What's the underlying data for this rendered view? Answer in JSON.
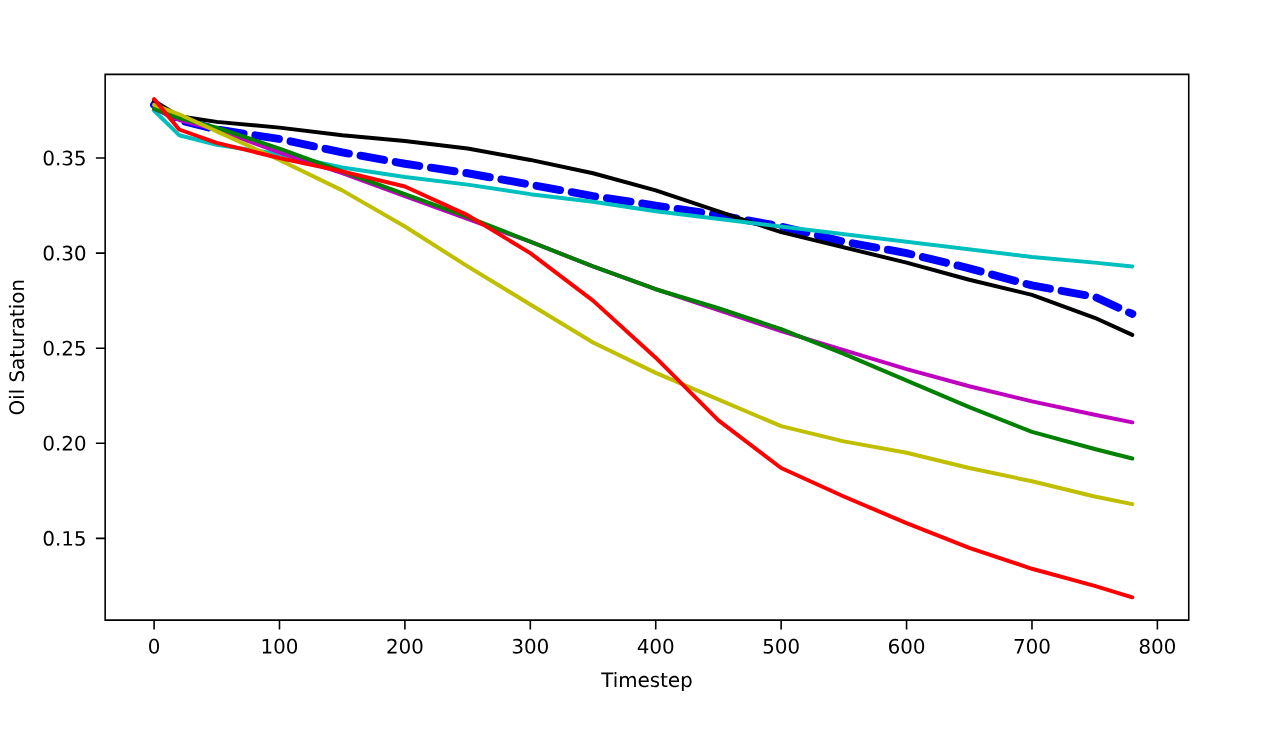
{
  "chart_data": {
    "type": "line",
    "xlabel": "Timestep",
    "ylabel": "Oil Saturation",
    "xlim": [
      -39,
      825
    ],
    "ylim": [
      0.107,
      0.394
    ],
    "xticks": [
      0,
      100,
      200,
      300,
      400,
      500,
      600,
      700,
      800
    ],
    "yticks": [
      0.15,
      {
        "value": 0.2,
        "label": "0.20"
      },
      0.25,
      {
        "value": 0.3,
        "label": "0.30"
      },
      0.35
    ],
    "marker": "none",
    "line_style": "solid",
    "x": [
      0,
      20,
      50,
      100,
      150,
      200,
      250,
      300,
      350,
      400,
      450,
      500,
      550,
      600,
      650,
      700,
      750,
      780
    ],
    "series": [
      {
        "color": "#0000ff",
        "line_style": "dashed",
        "values": [
          0.378,
          0.37,
          0.365,
          0.36,
          0.353,
          0.347,
          0.342,
          0.336,
          0.33,
          0.325,
          0.32,
          0.314,
          0.306,
          0.3,
          0.292,
          0.283,
          0.277,
          0.268
        ]
      },
      {
        "color": "#000000",
        "values": [
          0.38,
          0.372,
          0.369,
          0.366,
          0.362,
          0.359,
          0.355,
          0.349,
          0.342,
          0.333,
          0.322,
          0.311,
          0.303,
          0.295,
          0.286,
          0.278,
          0.266,
          0.257
        ]
      },
      {
        "color": "#00bfbf",
        "values": [
          0.375,
          0.362,
          0.357,
          0.352,
          0.345,
          0.34,
          0.336,
          0.331,
          0.327,
          0.322,
          0.318,
          0.314,
          0.31,
          0.306,
          0.302,
          0.298,
          0.295,
          0.293
        ]
      },
      {
        "color": "#bf00bf",
        "values": [
          0.376,
          0.37,
          0.365,
          0.353,
          0.342,
          0.33,
          0.318,
          0.306,
          0.293,
          0.281,
          0.27,
          0.259,
          0.249,
          0.239,
          0.23,
          0.222,
          0.215,
          0.211
        ]
      },
      {
        "color": "#008000",
        "values": [
          0.376,
          0.371,
          0.366,
          0.355,
          0.343,
          0.331,
          0.319,
          0.306,
          0.293,
          0.281,
          0.271,
          0.26,
          0.247,
          0.233,
          0.219,
          0.206,
          0.197,
          0.192
        ]
      },
      {
        "color": "#bfbf00",
        "values": [
          0.378,
          0.373,
          0.364,
          0.349,
          0.333,
          0.314,
          0.293,
          0.273,
          0.253,
          0.237,
          0.223,
          0.209,
          0.201,
          0.195,
          0.187,
          0.18,
          0.172,
          0.168
        ]
      },
      {
        "color": "#ff0000",
        "values": [
          0.381,
          0.365,
          0.358,
          0.35,
          0.343,
          0.335,
          0.32,
          0.3,
          0.275,
          0.245,
          0.212,
          0.187,
          0.172,
          0.158,
          0.145,
          0.134,
          0.125,
          0.119
        ]
      }
    ]
  }
}
